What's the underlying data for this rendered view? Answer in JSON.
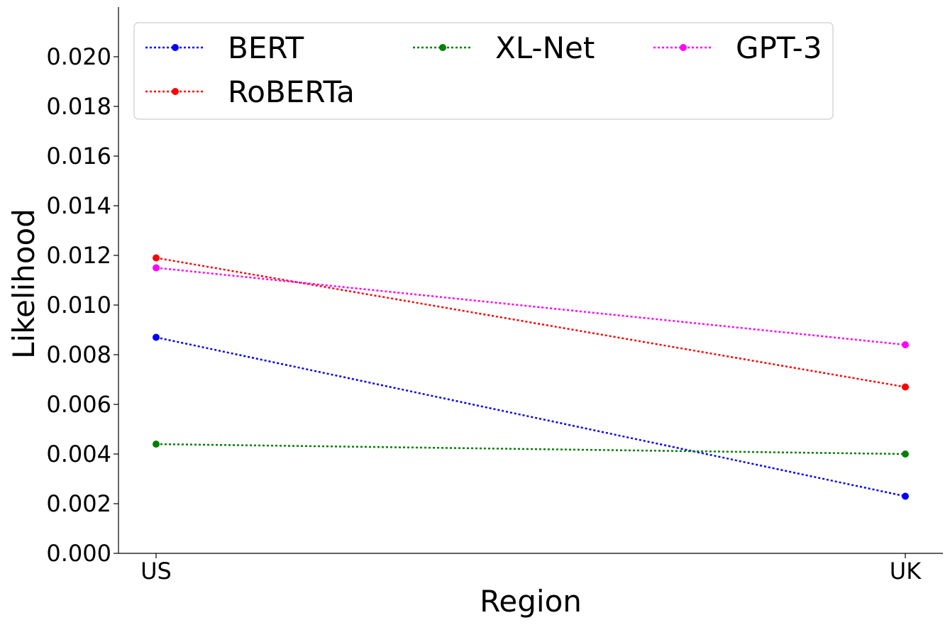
{
  "chart_data": {
    "type": "line",
    "title": "",
    "xlabel": "Region",
    "ylabel": "Likelihood",
    "categories": [
      "US",
      "UK"
    ],
    "ylim": [
      0,
      0.022
    ],
    "yticks": [
      "0.000",
      "0.002",
      "0.004",
      "0.006",
      "0.008",
      "0.010",
      "0.012",
      "0.014",
      "0.016",
      "0.018",
      "0.020"
    ],
    "line_style": "dotted",
    "marker": "circle",
    "grid": false,
    "legend_position": "top-left",
    "legend_columns": 3,
    "series": [
      {
        "name": "BERT",
        "color": "#0000ff",
        "values": [
          0.0087,
          0.0023
        ]
      },
      {
        "name": "RoBERTa",
        "color": "#ff0000",
        "values": [
          0.0119,
          0.0067
        ]
      },
      {
        "name": "XL-Net",
        "color": "#008000",
        "values": [
          0.0044,
          0.004
        ]
      },
      {
        "name": "GPT-3",
        "color": "#ff00ff",
        "values": [
          0.0115,
          0.0084
        ]
      }
    ]
  }
}
